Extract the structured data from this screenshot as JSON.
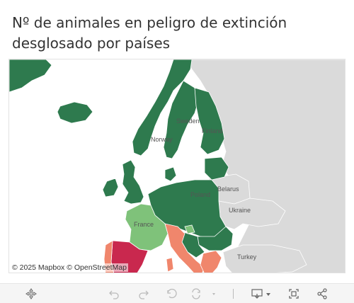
{
  "title": {
    "line1": "Nº de animales en peligro de extinción",
    "line2": "desglosado por países"
  },
  "map": {
    "attribution": "© 2025 Mapbox © OpenStreetMap",
    "colors": {
      "sea": "#ffffff",
      "land_no_data": "#dadada",
      "low": "#2e7a4e",
      "mid_low": "#7fc27a",
      "mid_high": "#f0866c",
      "high": "#c9284e"
    },
    "country_labels": [
      "Sweden",
      "Finland",
      "Norway",
      "Poland",
      "Belarus",
      "Ukraine",
      "France",
      "Turkey"
    ],
    "countries": [
      {
        "name": "Spain",
        "category": "high"
      },
      {
        "name": "Portugal",
        "category": "mid_high"
      },
      {
        "name": "Italy",
        "category": "mid_high"
      },
      {
        "name": "Greece",
        "category": "mid_high"
      },
      {
        "name": "France",
        "category": "mid_low"
      },
      {
        "name": "Slovenia",
        "category": "mid_low"
      },
      {
        "name": "Germany",
        "category": "low"
      },
      {
        "name": "Poland",
        "category": "low"
      },
      {
        "name": "Sweden",
        "category": "low"
      },
      {
        "name": "Finland",
        "category": "low"
      },
      {
        "name": "Norway",
        "category": "low"
      },
      {
        "name": "United Kingdom",
        "category": "low"
      },
      {
        "name": "Ireland",
        "category": "low"
      },
      {
        "name": "Iceland",
        "category": "low"
      },
      {
        "name": "Denmark",
        "category": "low"
      },
      {
        "name": "Baltic States",
        "category": "low"
      },
      {
        "name": "Romania",
        "category": "low"
      },
      {
        "name": "Croatia",
        "category": "low"
      },
      {
        "name": "Belarus",
        "category": "no_data"
      },
      {
        "name": "Ukraine",
        "category": "no_data"
      },
      {
        "name": "Turkey",
        "category": "no_data"
      }
    ]
  },
  "toolbar": {
    "icons": [
      "move-icon",
      "undo-icon",
      "redo-icon",
      "revert-icon",
      "refresh-icon",
      "download-icon",
      "fullscreen-icon",
      "share-icon"
    ]
  }
}
